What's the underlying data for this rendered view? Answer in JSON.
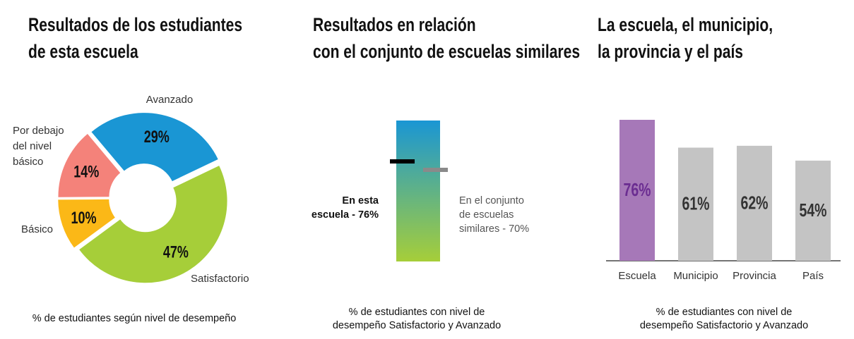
{
  "panels": {
    "donut": {
      "title_lines": [
        "Resultados de los estudiantes",
        "de esta escuela"
      ],
      "caption_lines": [
        "% de estudiantes según nivel de desempeño"
      ]
    },
    "comparison": {
      "title_lines": [
        "Resultados en relación",
        "con el conjunto de escuelas similares"
      ],
      "school_label_lines": [
        "En esta",
        "escuela  - 76%"
      ],
      "similar_label_lines": [
        "En el conjunto",
        "de escuelas",
        "similares - 70%"
      ],
      "caption_lines": [
        "% de estudiantes con nivel de",
        "desempeño Satisfactorio y Avanzado"
      ]
    },
    "bars": {
      "title_lines": [
        "La escuela, el municipio,",
        "la provincia y el país"
      ],
      "caption_lines": [
        "% de estudiantes con nivel de",
        "desempeño Satisfactorio y Avanzado"
      ]
    }
  },
  "chart_data": [
    {
      "type": "pie",
      "variant": "donut",
      "slices": [
        {
          "label": "Avanzado",
          "label_lines": [
            "Avanzado"
          ],
          "value": 29,
          "value_label": "29%",
          "color": "#1a96d4"
        },
        {
          "label": "Satisfactorio",
          "label_lines": [
            "Satisfactorio"
          ],
          "value": 47,
          "value_label": "47%",
          "color": "#a6ce39"
        },
        {
          "label": "Básico",
          "label_lines": [
            "Básico"
          ],
          "value": 10,
          "value_label": "10%",
          "color": "#fbb817"
        },
        {
          "label": "Por debajo del nivel básico",
          "label_lines": [
            "Por debajo",
            "del nivel",
            "básico"
          ],
          "value": 14,
          "value_label": "14%",
          "color": "#f4827a"
        }
      ]
    },
    {
      "type": "bar",
      "variant": "gradient-scale-with-markers",
      "ylim": [
        0,
        100
      ],
      "markers": [
        {
          "name": "En esta escuela",
          "value": 76,
          "color": "#000000"
        },
        {
          "name": "En el conjunto de escuelas similares",
          "value": 70,
          "color": "#8a8a8a"
        }
      ],
      "gradient_colors": [
        "#1a96d4",
        "#a6ce39"
      ]
    },
    {
      "type": "bar",
      "categories": [
        "Escuela",
        "Municipio",
        "Provincia",
        "País"
      ],
      "values": [
        76,
        61,
        62,
        54
      ],
      "value_labels": [
        "76%",
        "61%",
        "62%",
        "54%"
      ],
      "colors": [
        "#a678b8",
        "#c4c4c4",
        "#c4c4c4",
        "#c4c4c4"
      ],
      "label_colors": [
        "#6b2d91",
        "#333333",
        "#333333",
        "#333333"
      ],
      "ylim": [
        0,
        100
      ]
    }
  ]
}
